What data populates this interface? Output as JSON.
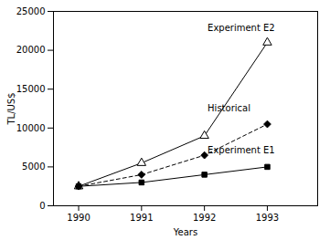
{
  "chart_data": {
    "type": "line",
    "x": [
      1990,
      1991,
      1992,
      1993
    ],
    "series": [
      {
        "name": "Experiment E2",
        "values": [
          2500,
          5500,
          9000,
          21000
        ],
        "marker": "triangle_open",
        "line_style": "solid"
      },
      {
        "name": "Historical",
        "values": [
          2500,
          4000,
          6500,
          10500
        ],
        "marker": "diamond",
        "line_style": "dashed"
      },
      {
        "name": "Experiment E1",
        "values": [
          2500,
          3000,
          4000,
          5000
        ],
        "marker": "square",
        "line_style": "solid"
      }
    ],
    "color": "black",
    "xlabel": "Years",
    "ylabel": "TL/US$",
    "xlim": [
      1989.6,
      1993.8
    ],
    "xticks": [
      1990,
      1991,
      1992,
      1993
    ],
    "ylim": [
      0,
      25000
    ],
    "yticks": [
      0,
      5000,
      10000,
      15000,
      20000,
      25000
    ],
    "grid": false,
    "annotations": [
      {
        "text": "Experiment E2",
        "x": 1992.05,
        "y": 22500
      },
      {
        "text": "Historical",
        "x": 1992.05,
        "y": 12200
      },
      {
        "text": "Experiment E1",
        "x": 1992.05,
        "y": 6800
      }
    ]
  }
}
